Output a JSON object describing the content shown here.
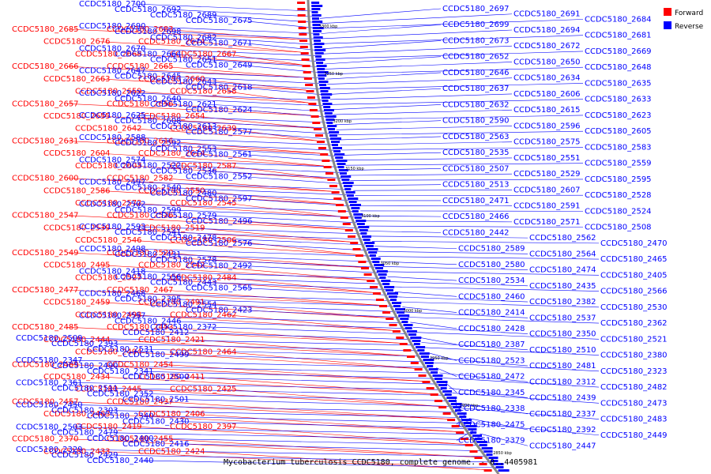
{
  "title": "Mycobacterium tuberculosis CCDC5180, complete genome. - 0..4405981",
  "legend": [
    {
      "label": "Forward",
      "color": "#ff0000"
    },
    {
      "label": "Reverse",
      "color": "#0000ff"
    }
  ],
  "colors": {
    "forward": "#ff0000",
    "reverse": "#0000ff",
    "backbone": "#888888"
  },
  "ticks": [
    "3300 kbp",
    "3250 kbp",
    "3200 kbp",
    "3150 kbp",
    "3100 kbp",
    "3050 kbp",
    "3000 kbp",
    "2950 kbp",
    "2900 kbp",
    "2850 kbp"
  ],
  "genes": {
    "forward": [
      "CCDC5180_2685",
      "CCDC5180_2683",
      "CCDC5180_2676",
      "CCDC5180_2674",
      "CCDC5180_2668",
      "CCDC5180_2667",
      "CCDC5180_2666",
      "CCDC5180_2665",
      "CCDC5180_2663",
      "CCDC5180_2660",
      "CCDC5180_2659",
      "CCDC5180_2658",
      "CCDC5180_2657",
      "CCDC5180_2656",
      "CCDC5180_2655",
      "CCDC5180_2654",
      "CCDC5180_2642",
      "CCDC5180_2639",
      "CCDC5180_2631",
      "CCDC5180_2616",
      "CCDC5180_2604",
      "CCDC5180_2614",
      "CCDC5180_2603",
      "CCDC5180_2587",
      "CCDC5180_2600",
      "CCDC5180_2582",
      "CCDC5180_2586",
      "CCDC5180_2550",
      "CCDC5180_2572",
      "CCDC5180_2545",
      "CCDC5180_2547",
      "CCDC5180_2526",
      "CCDC5180_2539",
      "CCDC5180_2519",
      "CCDC5180_2546",
      "CCDC5180_2506",
      "CCDC5180_2549",
      "CCDC5180_2520",
      "CCDC5180_2495",
      "CCDC5180_2542",
      "CCDC5180_2527",
      "CCDC5180_2484",
      "CCDC5180_2477",
      "CCDC5180_2467",
      "CCDC5180_2459",
      "CCDC5180_2491",
      "CCDC5180_2493",
      "CCDC5180_2462",
      "CCDC5180_2485",
      "CCDC5180_2453",
      "CCDC5180_2444",
      "CCDC5180_2421",
      "CCDC5180_2494",
      "CCDC5180_2464",
      "CCDC5180_2469",
      "CCDC5180_2454",
      "CCDC5180_2434",
      "CCDC5180_2411",
      "CCDC5180_2445",
      "CCDC5180_2425",
      "CCDC5180_2457",
      "CCDC5180_2437",
      "CCDC5180_2463",
      "CCDC5180_2406",
      "CCDC5180_2419",
      "CCDC5180_2397",
      "CCDC5180_2370",
      "CCDC5180_2455",
      "CCDC5180_2433",
      "CCDC5180_2424"
    ],
    "reverse": [
      "CCDC5180_2700",
      "CCDC5180_2697",
      "CCDC5180_2692",
      "CCDC5180_2691",
      "CCDC5180_2689",
      "CCDC5180_2684",
      "CCDC5180_2675",
      "CCDC5180_2699",
      "CCDC5180_2690",
      "CCDC5180_2694",
      "CCDC5180_2698",
      "CCDC5180_2681",
      "CCDC5180_2682",
      "CCDC5180_2673",
      "CCDC5180_2671",
      "CCDC5180_2672",
      "CCDC5180_2670",
      "CCDC5180_2669",
      "CCDC5180_2664",
      "CCDC5180_2652",
      "CCDC5180_2651",
      "CCDC5180_2650",
      "CCDC5180_2649",
      "CCDC5180_2648",
      "CCDC5180_2647",
      "CCDC5180_2646",
      "CCDC5180_2645",
      "CCDC5180_2634",
      "CCDC5180_2643",
      "CCDC5180_2635",
      "CCDC5180_2618",
      "CCDC5180_2637",
      "CCDC5180_2622",
      "CCDC5180_2606",
      "CCDC5180_2640",
      "CCDC5180_2633",
      "CCDC5180_2621",
      "CCDC5180_2632",
      "CCDC5180_2624",
      "CCDC5180_2615",
      "CCDC5180_2625",
      "CCDC5180_2623",
      "CCDC5180_2608",
      "CCDC5180_2590",
      "CCDC5180_2613",
      "CCDC5180_2596",
      "CCDC5180_2577",
      "CCDC5180_2605",
      "CCDC5180_2588",
      "CCDC5180_2563",
      "CCDC5180_2592",
      "CCDC5180_2575",
      "CCDC5180_2553",
      "CCDC5180_2583",
      "CCDC5180_2561",
      "CCDC5180_2535",
      "CCDC5180_2574",
      "CCDC5180_2551",
      "CCDC5180_2522",
      "CCDC5180_2559",
      "CCDC5180_2536",
      "CCDC5180_2507",
      "CCDC5180_2552",
      "CCDC5180_2529",
      "CCDC5180_2497",
      "CCDC5180_2595",
      "CCDC5180_2540",
      "CCDC5180_2513",
      "CCDC5180_2480",
      "CCDC5180_2607",
      "CCDC5180_2597",
      "CCDC5180_2528",
      "CCDC5180_2502",
      "CCDC5180_2471",
      "CCDC5180_2599",
      "CCDC5180_2591",
      "CCDC5180_2579",
      "CCDC5180_2524",
      "CCDC5180_2496",
      "CCDC5180_2466",
      "CCDC5180_2593",
      "CCDC5180_2571",
      "CCDC5180_2541",
      "CCDC5180_2508",
      "CCDC5180_2478",
      "CCDC5180_2442",
      "CCDC5180_2576",
      "CCDC5180_2562",
      "CCDC5180_2498",
      "CCDC5180_2470",
      "CCDC5180_2431",
      "CCDC5180_2589",
      "CCDC5180_2578",
      "CCDC5180_2564",
      "CCDC5180_2492",
      "CCDC5180_2465",
      "CCDC5180_2418",
      "CCDC5180_2580",
      "CCDC5180_2556",
      "CCDC5180_2474",
      "CCDC5180_2443",
      "CCDC5180_2405",
      "CCDC5180_2565",
      "CCDC5180_2534",
      "CCDC5180_2468",
      "CCDC5180_2435",
      "CCDC5180_2395",
      "CCDC5180_2566",
      "CCDC5180_2554",
      "CCDC5180_2460",
      "CCDC5180_2423",
      "CCDC5180_2382",
      "CCDC5180_2557",
      "CCDC5180_2530",
      "CCDC5180_2446",
      "CCDC5180_2414",
      "CCDC5180_2372",
      "CCDC5180_2537",
      "CCDC5180_2412",
      "CCDC5180_2362",
      "CCDC5180_2509",
      "CCDC5180_2428",
      "CCDC5180_2393",
      "CCDC5180_2350",
      "CCDC5180_2531",
      "CCDC5180_2521",
      "CCDC5180_2499",
      "CCDC5180_2387",
      "CCDC5180_2347",
      "CCDC5180_2510",
      "CCDC5180_2490",
      "CCDC5180_2380",
      "CCDC5180_2341",
      "CCDC5180_2523",
      "CCDC5180_2500",
      "CCDC5180_2481",
      "CCDC5180_2361",
      "CCDC5180_2323",
      "CCDC5180_2511",
      "CCDC5180_2472",
      "CCDC5180_2352",
      "CCDC5180_2312",
      "CCDC5180_2501",
      "CCDC5180_2482",
      "CCDC5180_2450",
      "CCDC5180_2345",
      "CCDC5180_2303",
      "CCDC5180_2439",
      "CCDC5180_2340",
      "CCDC5180_2473",
      "CCDC5180_2430",
      "CCDC5180_2338",
      "CCDC5180_2503",
      "CCDC5180_2337",
      "CCDC5180_2479",
      "CCDC5180_2483",
      "CCDC5180_2400",
      "CCDC5180_2475",
      "CCDC5180_2416",
      "CCDC5180_2392",
      "CCDC5180_2329",
      "CCDC5180_2449",
      "CCDC5180_2429",
      "CCDC5180_2379",
      "CCDC5180_2440",
      "CCDC5180_2447"
    ]
  }
}
